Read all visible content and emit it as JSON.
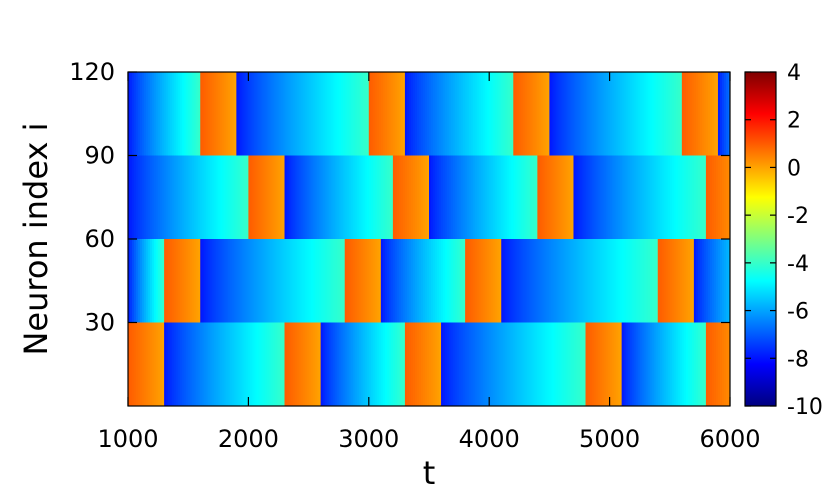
{
  "chart_data": {
    "type": "heatmap",
    "xlabel": "t",
    "ylabel": "Neuron index i",
    "xlim": [
      1000,
      6000
    ],
    "ylim": [
      1,
      120
    ],
    "x_ticks": [
      1000,
      2000,
      3000,
      4000,
      5000,
      6000
    ],
    "y_ticks": [
      30,
      60,
      90,
      120
    ],
    "colorbar": {
      "range": [
        -10,
        4
      ],
      "ticks": [
        4,
        2,
        0,
        -2,
        -4,
        -6,
        -8,
        -10
      ],
      "colormap": [
        "#00007f",
        "#0000ff",
        "#007fff",
        "#00ffff",
        "#7fff7f",
        "#ffff00",
        "#ff7f00",
        "#ff0000",
        "#7f0000"
      ]
    },
    "groups": [
      {
        "name": "1-30",
        "i_range": [
          1,
          30
        ],
        "spike_starts": [
          1000,
          2300,
          3300,
          4800,
          5800
        ]
      },
      {
        "name": "31-60",
        "i_range": [
          31,
          60
        ],
        "spike_starts": [
          1300,
          2800,
          3800,
          5400
        ]
      },
      {
        "name": "61-90",
        "i_range": [
          61,
          90
        ],
        "spike_starts": [
          2000,
          3200,
          4400,
          5800
        ]
      },
      {
        "name": "91-120",
        "i_range": [
          91,
          120
        ],
        "spike_starts": [
          1600,
          3000,
          4200,
          5600
        ]
      }
    ],
    "spike_width": 300,
    "spike_value_range": [
      1,
      0
    ],
    "recovery_value_range": [
      -8,
      -4
    ],
    "x_start": 1000
  }
}
